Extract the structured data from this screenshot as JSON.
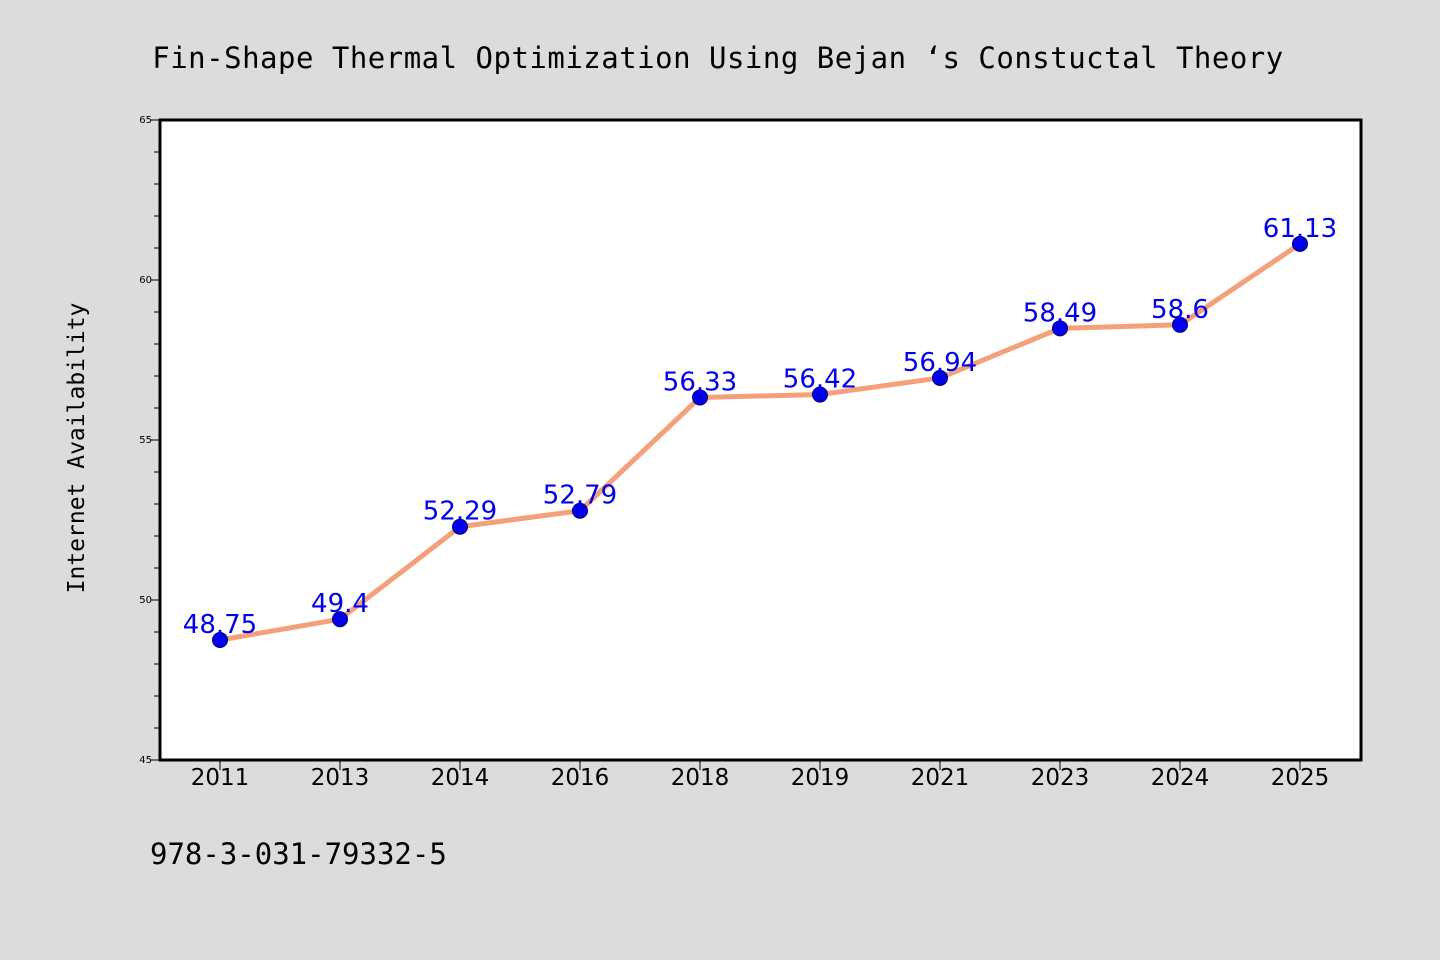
{
  "footer": {
    "isbn": "978-3-031-79332-5"
  },
  "colors": {
    "background": "#dcdcdc",
    "plot_background": "#ffffff",
    "line": "#f4a07a",
    "marker": "#0000ee",
    "label": "#0000ee",
    "axis": "#000000"
  },
  "chart_data": {
    "type": "line",
    "title": "Fin-Shape Thermal Optimization Using Bejan ‘s Constuctal Theory",
    "xlabel": "",
    "ylabel": "Internet Availability",
    "categories": [
      "2011",
      "2013",
      "2014",
      "2016",
      "2018",
      "2019",
      "2021",
      "2023",
      "2024",
      "2025"
    ],
    "series": [
      {
        "values": [
          48.75,
          49.4,
          52.29,
          52.79,
          56.33,
          56.42,
          56.94,
          58.49,
          58.6,
          61.13
        ],
        "data_labels": [
          "48.75",
          "49.4",
          "52.29",
          "52.79",
          "56.33",
          "56.42",
          "56.94",
          "58.49",
          "58.6",
          "61.13"
        ]
      }
    ],
    "ylim": [
      45,
      65
    ],
    "yticks": [
      45,
      50,
      55,
      60,
      65
    ],
    "y_minor_step": 1,
    "grid": false,
    "legend": "none"
  }
}
